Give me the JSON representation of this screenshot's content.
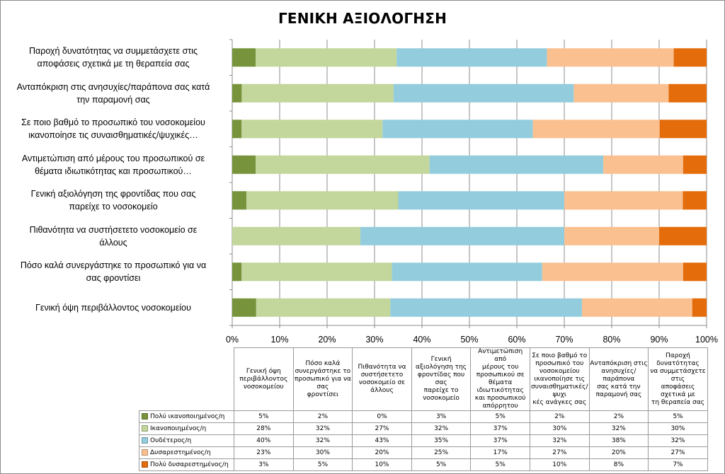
{
  "chart_data": {
    "type": "bar",
    "orientation": "horizontal",
    "stacked": "percent",
    "title": "ΓΕΝΙΚΗ ΑΞΙΟΛΟΓΗΣΗ",
    "categories": [
      "Γενική όψη περιβάλλοντος νοσοκομείου",
      "Πόσο καλά συνεργάστηκε το προσωπικό για να σας φροντίσει",
      "Πιθανότητα να συστήσετετο νοσοκομείο σε άλλους",
      "Γενική αξιολόγηση της φροντίδας που σας παρείχε το νοσοκομείο",
      "Αντιμετώπιση από μέρους του προσωπικού σε θέματα ιδιωτικότητας και προσωπικού απόρρητου",
      "Σε ποιο βαθμό το προσωπικό του νοσοκομείου ικανοποίησε τις συναισθηματικές/ψυχικές ανάγκες σας",
      "Ανταπόκριση στις ανησυχίες/παράπονα σας κατά την παραμονή σας",
      "Παροχή δυνατότητας να συμμετάσχετε στις αποφάσεις σχετικά με τη θεραπεία σας"
    ],
    "category_axis_labels": [
      [
        "Γενική όψη περιβάλλοντος νοσοκομείου"
      ],
      [
        "Πόσο καλά συνεργάστηκε το προσωπικό για να",
        "σας φροντίσει"
      ],
      [
        "Πιθανότητα να συστήσετετο νοσοκομείο σε",
        "άλλους"
      ],
      [
        "Γενική αξιολόγηση της φροντίδας που σας",
        "παρείχε το νοσοκομείο"
      ],
      [
        "Αντιμετώπιση από μέρους του προσωπικού σε",
        "θέματα ιδιωτικότητας και προσωπικού…"
      ],
      [
        "Σε ποιο βαθμό το προσωπικό του νοσοκομείου",
        "ικανοποίησε τις συναισθηματικές/ψυχικές…"
      ],
      [
        "Ανταπόκριση στις ανησυχίες/παράπονα σας κατά",
        "την παραμονή σας"
      ],
      [
        "Παροχή δυνατότητας να συμμετάσχετε στις",
        "αποφάσεις σχετικά με τη θεραπεία σας"
      ]
    ],
    "table_headers": [
      [
        "Γενική όψη",
        "περιβάλλοντος",
        "νοσοκομείου"
      ],
      [
        "Πόσο καλά",
        "συνεργάστηκε το",
        "προσωπικό για να σας",
        "φροντίσει"
      ],
      [
        "Πιθανότητα να",
        "συστήσετετο",
        "νοσοκομείο σε άλλους"
      ],
      [
        "Γενική αξιολόγηση της",
        "φροντίδας που σας",
        "παρείχε το νοσοκομείο"
      ],
      [
        "Αντιμετώπιση από",
        "μέρους του",
        "προσωπικού σε",
        "θέματα ιδιωτικότητας",
        "και προσωπικού",
        "απόρρητου"
      ],
      [
        "Σε ποιο βαθμό το",
        "προσωπικό του",
        "νοσοκομείου",
        "ικανοποίησε τις",
        "συναισθηματικές/ψυχι",
        "κές ανάγκες σας"
      ],
      [
        "Ανταπόκριση στις",
        "ανησυχίες/παράπονα",
        "σας κατά την",
        "παραμονή σας"
      ],
      [
        "Παροχή δυνατότητας",
        "να συμμετάσχετε στις",
        "αποφάσεις σχετικά με",
        "τη θεραπεία σας"
      ]
    ],
    "series": [
      {
        "name": "Πολύ ικανοποιημένος/η",
        "color": "#77933c",
        "values": [
          5,
          2,
          0,
          3,
          5,
          2,
          2,
          5
        ],
        "labels": [
          "5%",
          "2%",
          "0%",
          "3%",
          "5%",
          "2%",
          "2%",
          "5%"
        ]
      },
      {
        "name": "Ικανοποιημένος/η",
        "color": "#c3d69b",
        "values": [
          28,
          32,
          27,
          32,
          37,
          30,
          32,
          30
        ],
        "labels": [
          "28%",
          "32%",
          "27%",
          "32%",
          "37%",
          "30%",
          "32%",
          "30%"
        ]
      },
      {
        "name": "Ουδέτερος/η",
        "color": "#93cddd",
        "values": [
          40,
          32,
          43,
          35,
          37,
          32,
          38,
          32
        ],
        "labels": [
          "40%",
          "32%",
          "43%",
          "35%",
          "37%",
          "32%",
          "38%",
          "32%"
        ]
      },
      {
        "name": "Δυσαρεστημένος/η",
        "color": "#fac090",
        "values": [
          23,
          30,
          20,
          25,
          17,
          27,
          20,
          27
        ],
        "labels": [
          "23%",
          "30%",
          "20%",
          "25%",
          "17%",
          "27%",
          "20%",
          "27%"
        ]
      },
      {
        "name": "Πολύ δυσαρεστημένος/η",
        "color": "#e46c0a",
        "values": [
          3,
          5,
          10,
          5,
          5,
          10,
          8,
          7
        ],
        "labels": [
          "3%",
          "5%",
          "10%",
          "5%",
          "5%",
          "10%",
          "8%",
          "7%"
        ]
      }
    ],
    "xlim": [
      0,
      100
    ],
    "x_ticks": [
      "0%",
      "10%",
      "20%",
      "30%",
      "40%",
      "50%",
      "60%",
      "70%",
      "80%",
      "90%",
      "100%"
    ],
    "grid": true,
    "legend": "data-table-below"
  }
}
